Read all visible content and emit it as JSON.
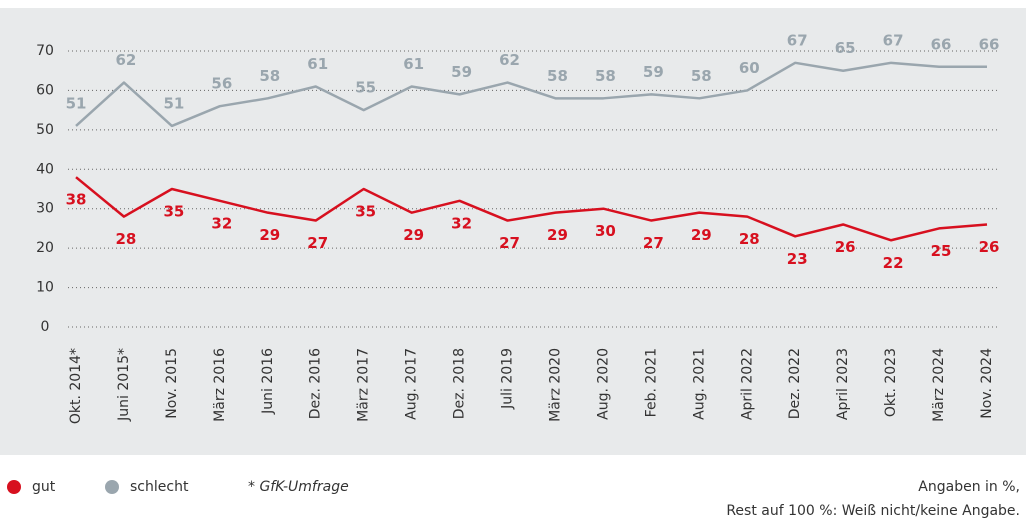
{
  "chart_data": {
    "type": "line",
    "categories": [
      "Okt. 2014*",
      "Juni 2015*",
      "Nov. 2015",
      "März 2016",
      "Juni 2016",
      "Dez. 2016",
      "März 2017",
      "Aug. 2017",
      "Dez. 2018",
      "Juli 2019",
      "März 2020",
      "Aug. 2020",
      "Feb. 2021",
      "Aug. 2021",
      "April 2022",
      "Dez. 2022",
      "April 2023",
      "Okt. 2023",
      "März 2024",
      "Nov. 2024"
    ],
    "series": [
      {
        "name": "gut",
        "color": "#d7101f",
        "values": [
          38,
          28,
          35,
          32,
          29,
          27,
          35,
          29,
          32,
          27,
          29,
          30,
          27,
          29,
          28,
          23,
          26,
          22,
          25,
          26
        ]
      },
      {
        "name": "schlecht",
        "color": "#9aa6ae",
        "values": [
          51,
          62,
          51,
          56,
          58,
          61,
          55,
          61,
          59,
          62,
          58,
          58,
          59,
          58,
          60,
          67,
          65,
          67,
          66,
          66
        ]
      }
    ],
    "ylim": [
      0,
      70
    ],
    "yticks": [
      0,
      10,
      20,
      30,
      40,
      50,
      60,
      70
    ],
    "grid": true,
    "footnote": "* GfK-Umfrage",
    "note": [
      "Angaben in %,",
      "Rest auf 100 %: Weiß nicht/keine Angabe."
    ]
  }
}
